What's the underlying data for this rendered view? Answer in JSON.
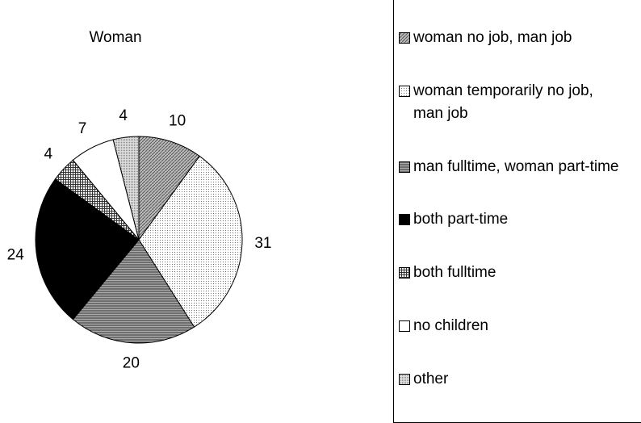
{
  "chart_data": {
    "type": "pie",
    "title": "Woman",
    "categories": [
      "woman no job, man job",
      "woman temporarily no job, man job",
      "man fulltime, woman part-time",
      "both part-time",
      "both fulltime",
      "no children",
      "other"
    ],
    "values": [
      10,
      31,
      20,
      24,
      4,
      7,
      4
    ]
  }
}
